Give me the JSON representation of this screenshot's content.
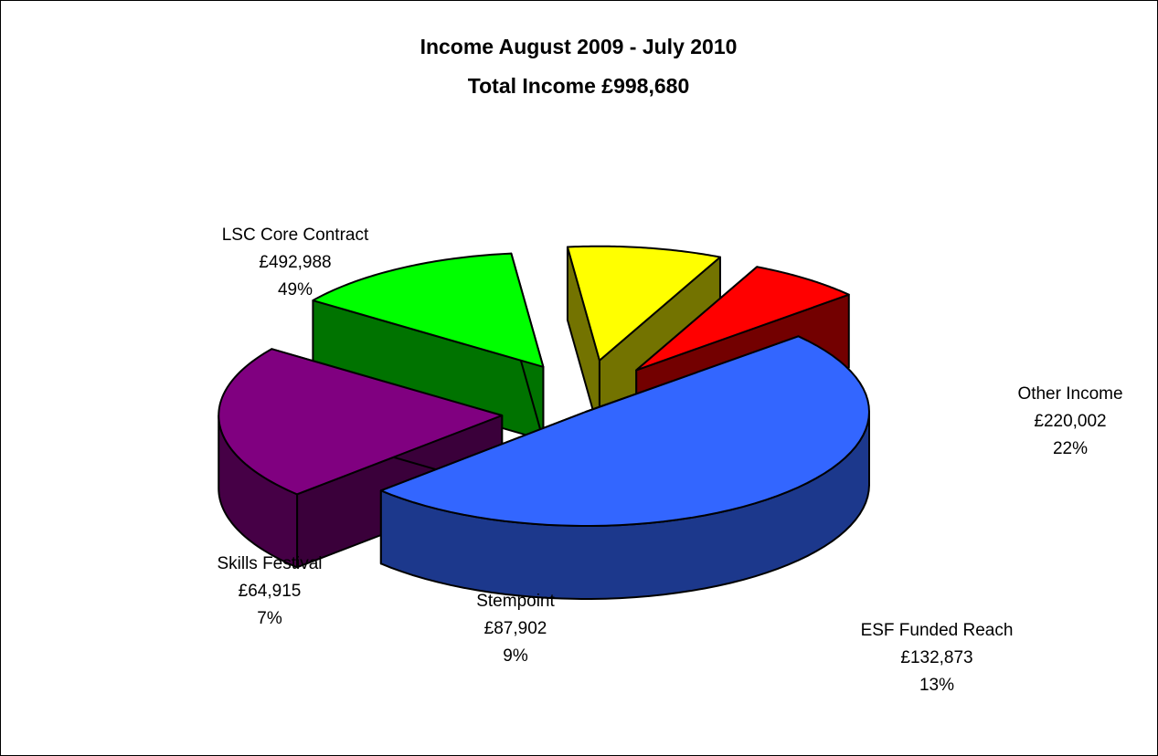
{
  "chart_data": {
    "type": "pie",
    "title": "Income August 2009 - July 2010",
    "subtitle": "Total Income £998,680",
    "slices": [
      {
        "name": "LSC Core Contract",
        "amount": "£492,988",
        "percent": "49%",
        "value": 492988,
        "color": "#3366FF"
      },
      {
        "name": "Other Income",
        "amount": "£220,002",
        "percent": "22%",
        "value": 220002,
        "color": "#800080"
      },
      {
        "name": "ESF Funded Reach",
        "amount": "£132,873",
        "percent": "13%",
        "value": 132873,
        "color": "#00FF00"
      },
      {
        "name": "Stempoint",
        "amount": "£87,902",
        "percent": "9%",
        "value": 87902,
        "color": "#FFFF00"
      },
      {
        "name": "Skills Festival",
        "amount": "£64,915",
        "percent": "7%",
        "value": 64915,
        "color": "#FF0000"
      }
    ],
    "exploded": true,
    "three_d": true,
    "legend": "none"
  }
}
